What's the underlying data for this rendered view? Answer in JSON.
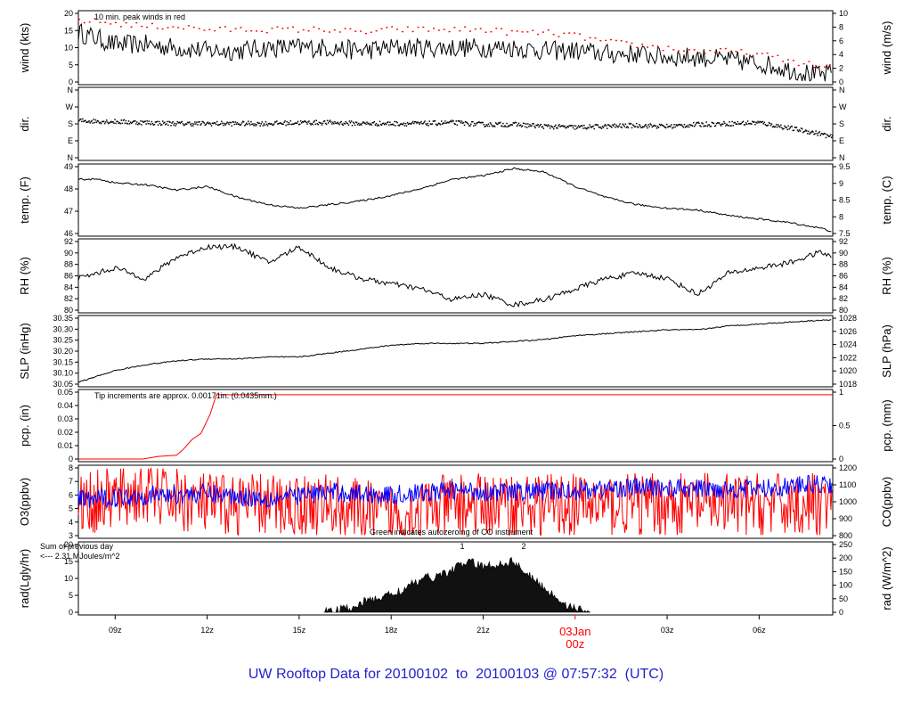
{
  "footer": {
    "prefix": "UW Rooftop Data for ",
    "start": "20100102",
    "sep": "  to  ",
    "end": "20100103",
    "at": " @ ",
    "time": "07:57:32",
    "zone": "  (UTC)"
  },
  "colors": {
    "primary": "#000000",
    "peak": "#ff0000",
    "co": "#0000ff",
    "autozero": "#00b000",
    "radnote": "#8800cc",
    "footer": "#2222cc"
  },
  "chart_data": [
    {
      "type": "line",
      "ylabel": "wind (kts)",
      "ylabel2": "wind (m/s)",
      "ylim": [
        0,
        22
      ],
      "yticks": [
        "0",
        "5",
        "10",
        "15",
        "20"
      ],
      "ylim2": [
        0,
        11.3
      ],
      "yticks2": [
        "0",
        "2",
        "4",
        "6",
        "8",
        "10"
      ],
      "annotation": "10 min. peak winds in red",
      "series": [
        {
          "x": [
            7.8,
            9,
            10,
            11,
            12,
            13,
            14,
            15,
            16,
            17,
            18,
            19,
            20,
            21,
            22,
            23,
            24,
            25,
            26,
            27,
            28,
            29,
            30,
            31,
            32,
            32.4
          ],
          "values": [
            16,
            12,
            12,
            11,
            10,
            10,
            11,
            11,
            11,
            10,
            11,
            11,
            11,
            11,
            11,
            10,
            10,
            9,
            9,
            8,
            8,
            7,
            6,
            4,
            2,
            3
          ]
        },
        {
          "x": [
            7.8,
            9,
            10,
            11,
            12,
            13,
            14,
            15,
            16,
            17,
            18,
            19,
            20,
            21,
            22,
            23,
            24,
            25,
            26,
            27,
            28,
            29,
            30,
            31,
            32,
            32.4
          ],
          "values": [
            20,
            19,
            18,
            18,
            17,
            17,
            17,
            17,
            17,
            16,
            17,
            17,
            17,
            17,
            16,
            16,
            15,
            13,
            12,
            11,
            10,
            10,
            9,
            7,
            5,
            5
          ]
        }
      ]
    },
    {
      "type": "scatter",
      "ylabel": "dir.",
      "ylabel2": "dir.",
      "yticks": [
        "N",
        "E",
        "S",
        "W",
        "N"
      ],
      "yticks2": [
        "N",
        "E",
        "S",
        "W",
        "N"
      ],
      "series": [
        {
          "x": [
            7.8,
            9,
            10,
            11,
            12,
            13,
            14,
            15,
            16,
            17,
            18,
            19,
            20,
            21,
            22,
            23,
            24,
            25,
            26,
            27,
            28,
            29,
            30,
            31,
            32,
            32.4
          ],
          "values": [
            200,
            195,
            190,
            185,
            185,
            185,
            185,
            190,
            190,
            185,
            185,
            185,
            190,
            180,
            180,
            170,
            165,
            170,
            175,
            170,
            180,
            185,
            190,
            160,
            130,
            110
          ]
        }
      ]
    },
    {
      "type": "line",
      "ylabel": "temp. (F)",
      "ylabel2": "temp. (C)",
      "ylim": [
        45.6,
        49.3
      ],
      "yticks": [
        "46",
        "47",
        "48",
        "49"
      ],
      "ylim2": [
        7.55,
        9.6
      ],
      "yticks2": [
        "7.5",
        "8",
        "8.5",
        "9",
        "9.5"
      ],
      "series": [
        {
          "x": [
            7.8,
            8.5,
            9,
            10,
            11,
            12,
            13,
            14,
            15,
            16,
            17,
            18,
            19,
            20,
            21,
            22,
            23,
            24,
            25,
            26,
            27,
            28,
            29,
            30,
            31,
            32,
            32.4
          ],
          "values": [
            48.6,
            48.6,
            48.4,
            48.3,
            48.0,
            48.2,
            47.6,
            47.2,
            47.0,
            47.2,
            47.4,
            47.7,
            48.1,
            48.6,
            48.8,
            49.2,
            49.0,
            48.2,
            47.6,
            47.2,
            47.0,
            46.9,
            46.6,
            46.4,
            46.2,
            45.9,
            45.7
          ]
        }
      ]
    },
    {
      "type": "line",
      "ylabel": "RH (%)",
      "ylabel2": "RH (%)",
      "ylim": [
        80,
        93
      ],
      "yticks": [
        "80",
        "82",
        "84",
        "86",
        "88",
        "90",
        "92"
      ],
      "yticks2": [
        "80",
        "82",
        "84",
        "86",
        "88",
        "90",
        "92"
      ],
      "series": [
        {
          "x": [
            7.8,
            9,
            10,
            11,
            12,
            13,
            14,
            15,
            16,
            17,
            18,
            19,
            20,
            21,
            22,
            23,
            24,
            25,
            26,
            27,
            28,
            29,
            30,
            31,
            32,
            32.4
          ],
          "values": [
            86,
            88,
            86,
            90,
            92,
            92,
            89,
            92,
            88,
            86,
            85,
            84,
            82,
            83,
            81,
            82,
            84,
            86,
            87,
            86,
            83,
            87,
            88,
            89,
            91,
            90
          ]
        }
      ]
    },
    {
      "type": "line",
      "ylabel": "SLP (inHg)",
      "ylabel2": "SLP (hPa)",
      "ylim": [
        30.05,
        30.39
      ],
      "yticks": [
        "30.05",
        "30.10",
        "30.15",
        "30.20",
        "30.25",
        "30.30",
        "30.35"
      ],
      "ylim2": [
        1017.6,
        1029.1
      ],
      "yticks2": [
        "1018",
        "1020",
        "1022",
        "1024",
        "1026",
        "1028"
      ],
      "series": [
        {
          "x": [
            7.8,
            9,
            10,
            11,
            12,
            13,
            14,
            15,
            16,
            17,
            18,
            19,
            20,
            21,
            22,
            23,
            24,
            25,
            26,
            27,
            28,
            29,
            30,
            31,
            32,
            32.4
          ],
          "values": [
            30.06,
            30.12,
            30.15,
            30.17,
            30.18,
            30.18,
            30.19,
            30.19,
            30.21,
            30.23,
            30.25,
            30.26,
            30.26,
            30.26,
            30.27,
            30.28,
            30.3,
            30.31,
            30.32,
            30.33,
            30.33,
            30.35,
            30.36,
            30.37,
            30.38,
            30.38
          ]
        }
      ]
    },
    {
      "type": "line",
      "ylabel": "pcp. (in)",
      "ylabel2": "pcp. (mm)",
      "ylim": [
        0,
        0.052
      ],
      "yticks": [
        "0",
        "0.01",
        "0.02",
        "0.03",
        "0.04",
        "0.05"
      ],
      "ylim2": [
        0,
        1.32
      ],
      "yticks2": [
        "0",
        "0.5",
        "1"
      ],
      "annotation": "Tip increments are approx. 0.00171in. (0.0435mm.)",
      "series": [
        {
          "x": [
            7.8,
            9.0,
            9.9,
            10.4,
            11.0,
            11.2,
            11.5,
            11.8,
            12.1,
            12.3,
            32.4
          ],
          "values": [
            0,
            0,
            0,
            0.002,
            0.003,
            0.007,
            0.015,
            0.02,
            0.035,
            0.05,
            0.05
          ]
        }
      ]
    },
    {
      "type": "line",
      "ylabel": "O3(ppbv)",
      "ylabel2": "CO(ppbv)",
      "ylim": [
        2.5,
        8
      ],
      "yticks": [
        "3",
        "4",
        "5",
        "6",
        "7",
        "8"
      ],
      "ylim2": [
        780,
        1200
      ],
      "yticks2": [
        "800",
        "900",
        "1000",
        "1100",
        "1200"
      ],
      "annotation": "Green indicates autozeroing of CO instrument",
      "series": [
        {
          "x": [
            7.8,
            10,
            12,
            14,
            16,
            18,
            20,
            22,
            24,
            26,
            28,
            30,
            32,
            32.4
          ],
          "values": [
            5,
            6,
            5,
            5,
            5,
            4,
            5,
            5,
            5,
            5,
            5,
            5,
            5,
            5
          ]
        },
        {
          "x": [
            7.8,
            10,
            12,
            14,
            16,
            18,
            20,
            22,
            24,
            26,
            28,
            30,
            32,
            32.4
          ],
          "values": [
            1000,
            1030,
            1040,
            1010,
            1050,
            1030,
            1060,
            1050,
            1060,
            1080,
            1070,
            1070,
            1100,
            1100
          ]
        }
      ]
    },
    {
      "type": "area",
      "ylabel": "rad(Lgly/hr)",
      "ylabel2": "rad (W/m^2)",
      "ylim": [
        0,
        22.5
      ],
      "yticks": [
        "0",
        "5",
        "10",
        "15",
        "20"
      ],
      "ylim2": [
        0,
        261
      ],
      "yticks2": [
        "0",
        "50",
        "100",
        "150",
        "200",
        "250"
      ],
      "annotation": "Sum of previous day",
      "annotation2": "<--- 2.31 MJoules/m^2",
      "marks": [
        "1",
        "2"
      ],
      "series": [
        {
          "x": [
            15.8,
            16.5,
            17,
            17.5,
            18,
            18.5,
            19,
            19.5,
            20,
            20.5,
            21,
            21.5,
            22,
            22.5,
            23,
            23.5,
            24,
            24.5
          ],
          "values": [
            0,
            1,
            3,
            4.5,
            6,
            8,
            11,
            12,
            14,
            17,
            15,
            16,
            17,
            12,
            8,
            4,
            1,
            0
          ]
        }
      ]
    }
  ],
  "x_axis": {
    "xlim": [
      7.8,
      32.4
    ],
    "ticks": [
      {
        "x": 9,
        "label": "09z"
      },
      {
        "x": 12,
        "label": "12z"
      },
      {
        "x": 15,
        "label": "15z"
      },
      {
        "x": 18,
        "label": "18z"
      },
      {
        "x": 21,
        "label": "21z"
      },
      {
        "x": 27,
        "label": "03z"
      },
      {
        "x": 30,
        "label": "06z"
      }
    ],
    "day_break": {
      "x": 24,
      "label_date": "03Jan",
      "label_hour": "00z"
    }
  }
}
